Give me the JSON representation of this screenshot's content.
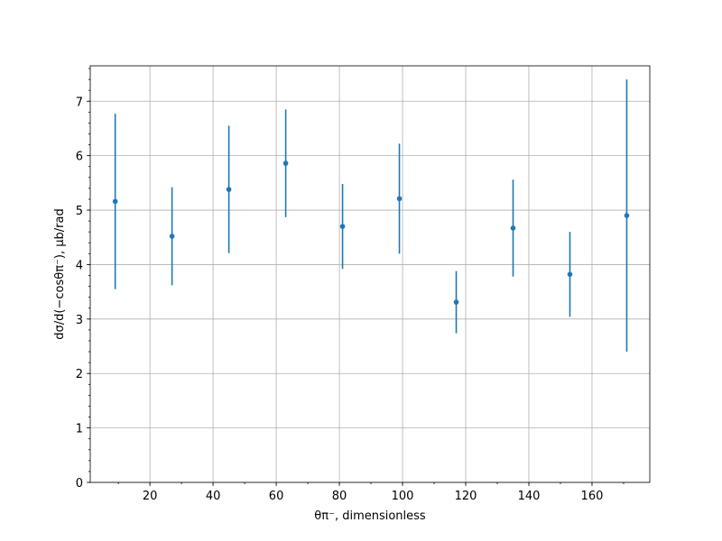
{
  "chart_data": {
    "type": "errorbar",
    "xlabel": "θπ⁻, dimensionless",
    "ylabel": "dσ/d(−cosθπ⁻), μb/rad",
    "x": [
      9,
      27,
      45,
      63,
      81,
      99,
      117,
      135,
      153,
      171
    ],
    "values": [
      5.16,
      4.52,
      5.38,
      5.86,
      4.7,
      5.21,
      3.31,
      4.67,
      3.82,
      4.9
    ],
    "errors": [
      1.61,
      0.9,
      1.17,
      0.99,
      0.78,
      1.01,
      0.57,
      0.89,
      0.78,
      2.5
    ],
    "color": "#1f77b4",
    "xlim": [
      1.1,
      178.3
    ],
    "xticks": [
      20,
      40,
      60,
      80,
      100,
      120,
      140,
      160
    ],
    "ylim": [
      0,
      7.65
    ],
    "yticks": [
      0,
      1,
      2,
      3,
      4,
      5,
      6,
      7
    ],
    "grid": true
  }
}
